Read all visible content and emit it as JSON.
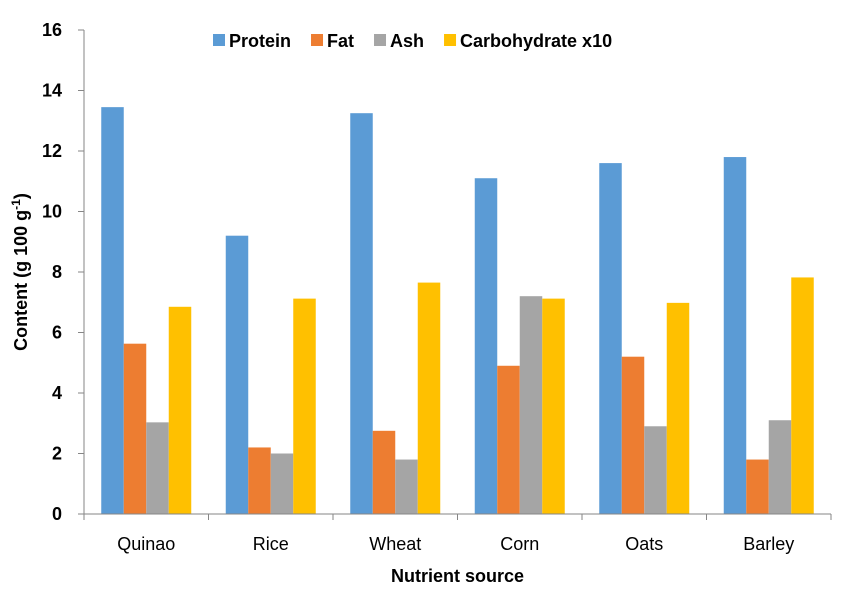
{
  "chart_data": {
    "type": "bar",
    "categories": [
      "Quinao",
      "Rice",
      "Wheat",
      "Corn",
      "Oats",
      "Barley"
    ],
    "series": [
      {
        "name": "Protein",
        "color": "#5B9BD5",
        "values": [
          13.45,
          9.2,
          13.25,
          11.1,
          11.6,
          11.8
        ]
      },
      {
        "name": "Fat",
        "color": "#ED7D31",
        "values": [
          5.63,
          2.2,
          2.75,
          4.9,
          5.2,
          1.8
        ]
      },
      {
        "name": "Ash",
        "color": "#A5A5A5",
        "values": [
          3.03,
          2.0,
          1.8,
          7.2,
          2.9,
          3.1
        ]
      },
      {
        "name": "Carbohydrate x10",
        "color": "#FFC000",
        "values": [
          6.85,
          7.12,
          7.65,
          7.12,
          6.98,
          7.82
        ]
      }
    ],
    "xlabel": "Nutrient source",
    "ylabel": "Content (g 100 g",
    "ylabel_superscript": "-1",
    "ylabel_suffix": ")",
    "ylim": [
      0,
      16
    ],
    "yticks": [
      0,
      2,
      4,
      6,
      8,
      10,
      12,
      14,
      16
    ],
    "grid": false,
    "legend_position": "top"
  }
}
